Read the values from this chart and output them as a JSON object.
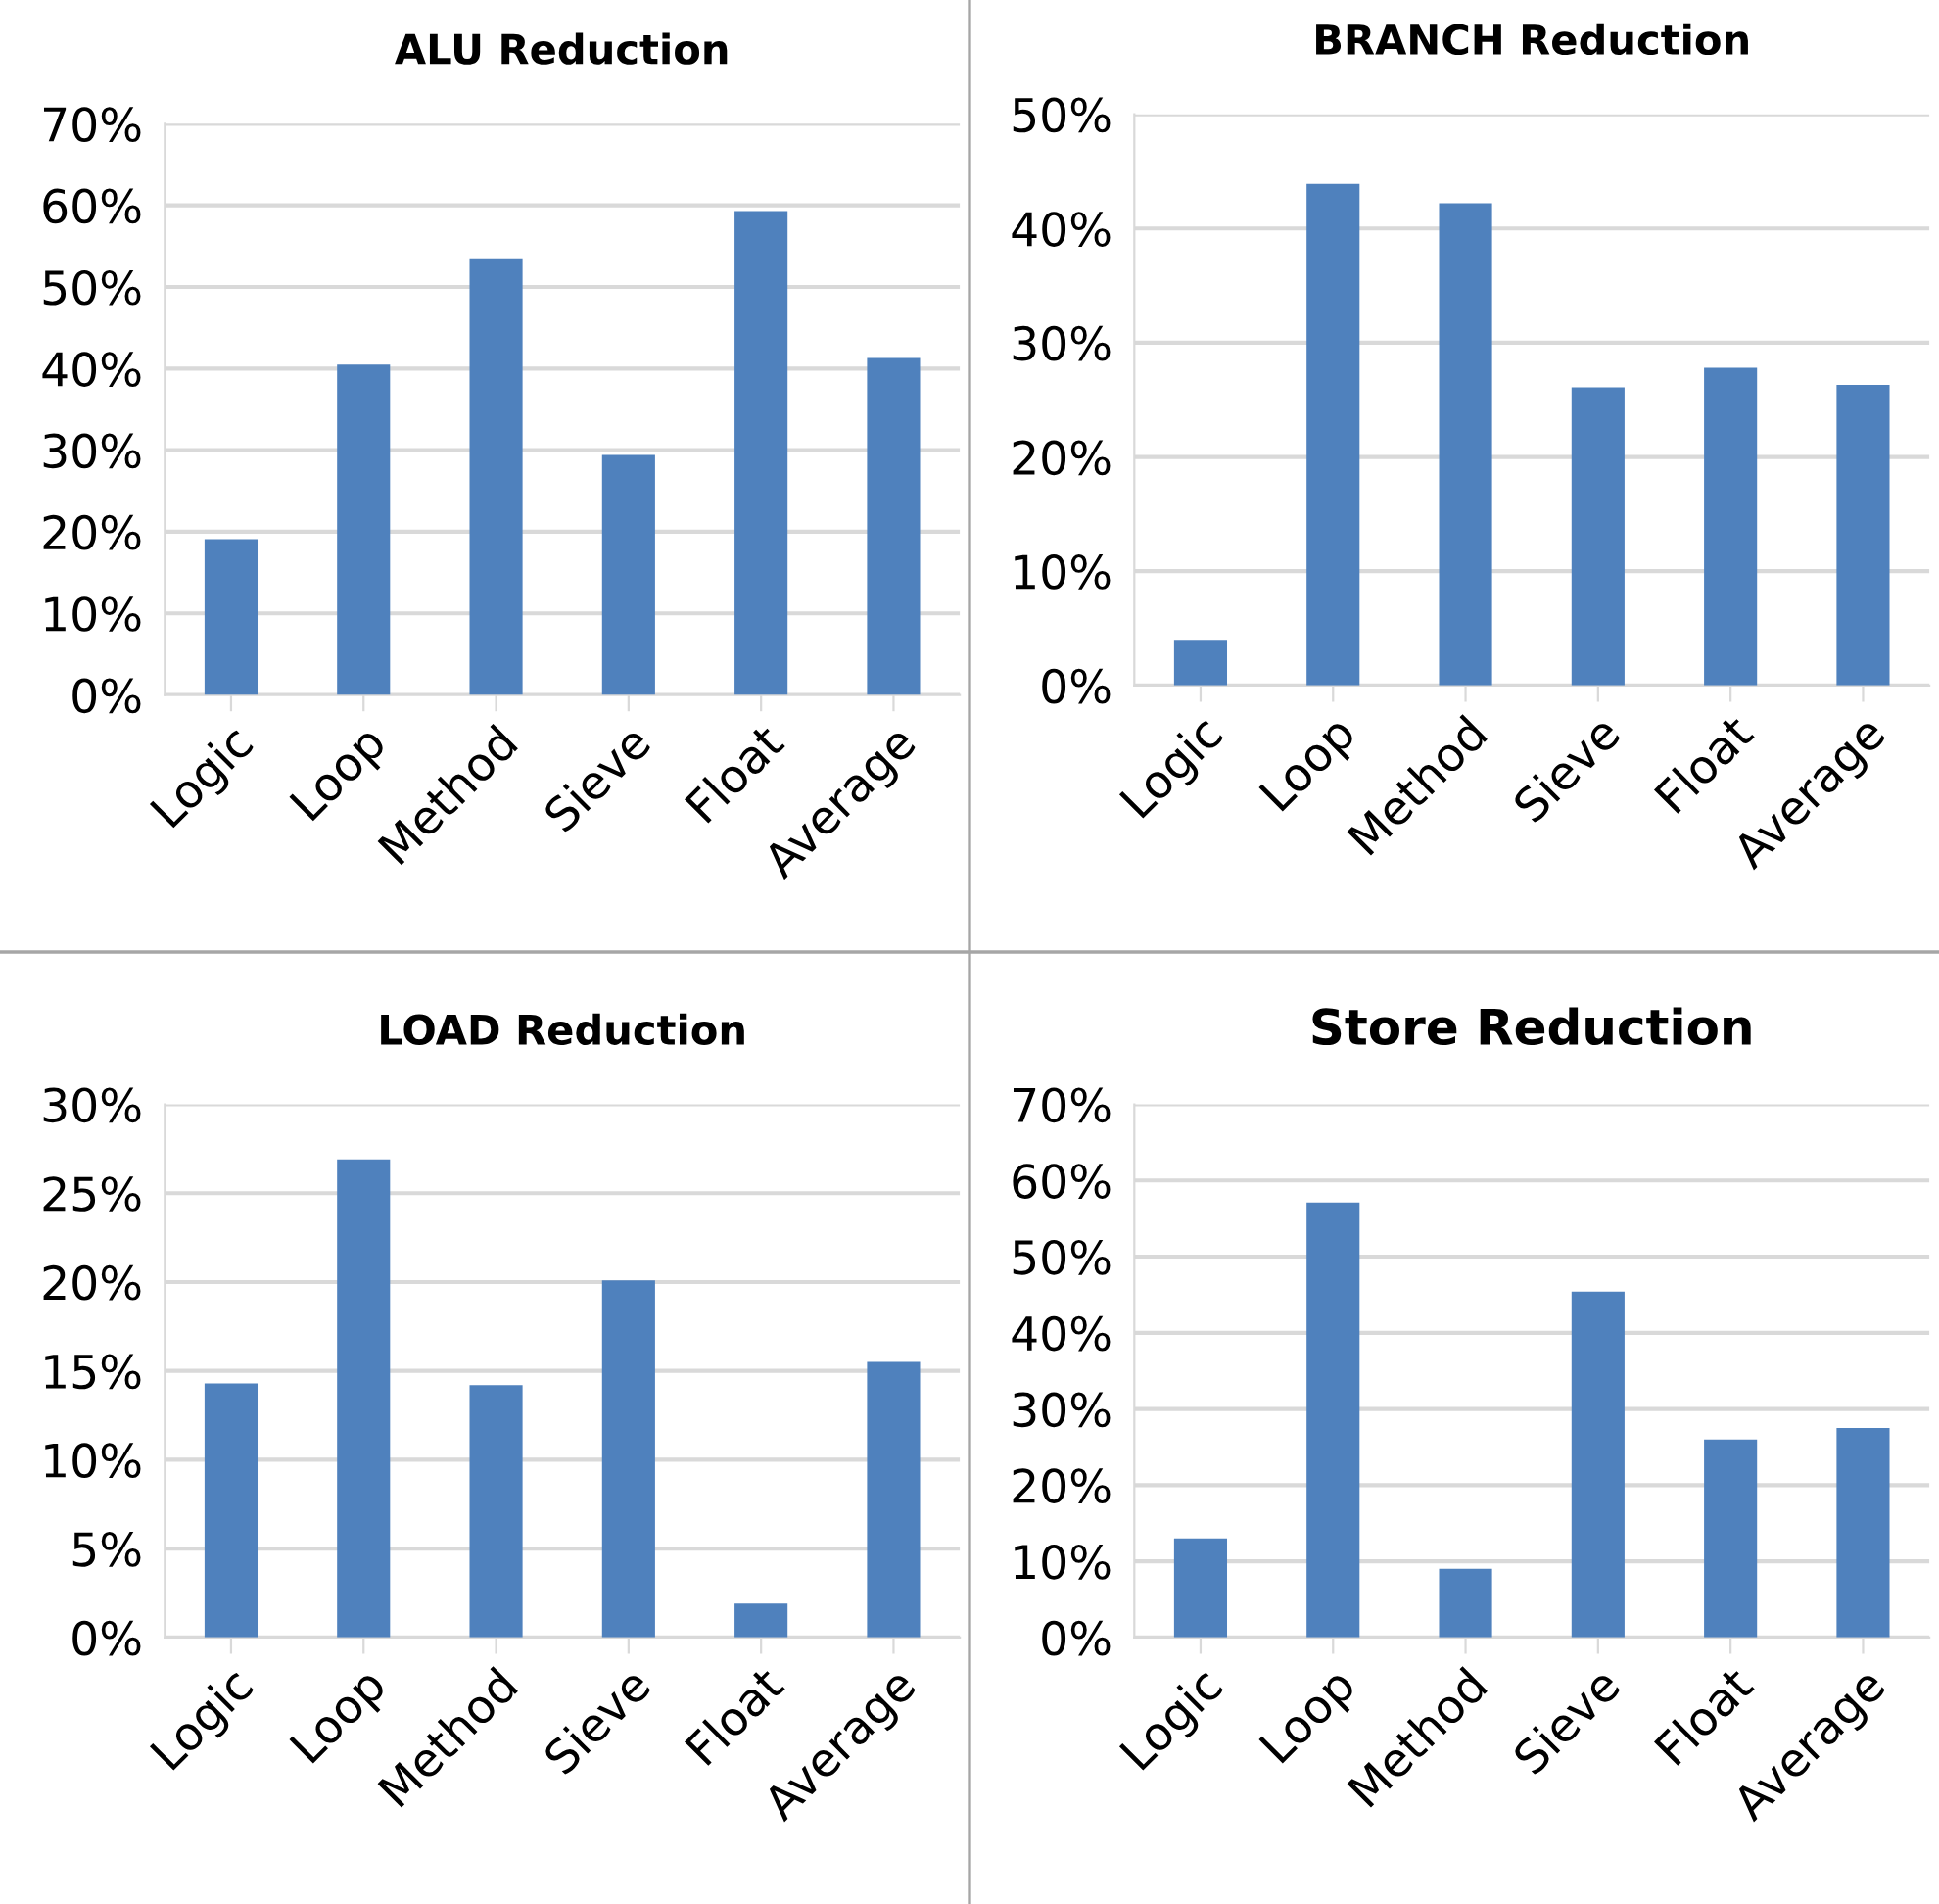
{
  "chart_data": [
    {
      "type": "bar",
      "title": "ALU Reduction",
      "categories": [
        "Logic",
        "Loop",
        "Method",
        "Sieve",
        "Float",
        "Average"
      ],
      "values": [
        19.1,
        40.5,
        53.5,
        29.4,
        59.3,
        41.3
      ],
      "color": "#4f81bd",
      "ylim": [
        0,
        70
      ],
      "yticks": [
        {
          "value": 0,
          "label": "0%"
        },
        {
          "value": 10,
          "label": "10%"
        },
        {
          "value": 20,
          "label": "20%"
        },
        {
          "value": 30,
          "label": "30%"
        },
        {
          "value": 40,
          "label": "40%"
        },
        {
          "value": 50,
          "label": "50%"
        },
        {
          "value": 60,
          "label": "60%"
        },
        {
          "value": 70,
          "label": "70%"
        }
      ],
      "grid": "y"
    },
    {
      "type": "bar",
      "title": "BRANCH Reduction",
      "categories": [
        "Logic",
        "Loop",
        "Method",
        "Sieve",
        "Float",
        "Average"
      ],
      "values": [
        4.0,
        43.9,
        42.2,
        26.1,
        27.8,
        26.3
      ],
      "color": "#4f81bd",
      "ylim": [
        0,
        50
      ],
      "yticks": [
        {
          "value": 0,
          "label": "0%"
        },
        {
          "value": 10,
          "label": "10%"
        },
        {
          "value": 20,
          "label": "20%"
        },
        {
          "value": 30,
          "label": "30%"
        },
        {
          "value": 40,
          "label": "40%"
        },
        {
          "value": 50,
          "label": "50%"
        }
      ],
      "grid": "y"
    },
    {
      "type": "bar",
      "title": "LOAD Reduction",
      "categories": [
        "Logic",
        "Loop",
        "Method",
        "Sieve",
        "Float",
        "Average"
      ],
      "values": [
        14.3,
        26.9,
        14.2,
        20.1,
        1.9,
        15.5
      ],
      "color": "#4f81bd",
      "ylim": [
        0,
        30
      ],
      "yticks": [
        {
          "value": 0,
          "label": "0%"
        },
        {
          "value": 5,
          "label": "5%"
        },
        {
          "value": 10,
          "label": "10%"
        },
        {
          "value": 15,
          "label": "15%"
        },
        {
          "value": 20,
          "label": "20%"
        },
        {
          "value": 25,
          "label": "25%"
        },
        {
          "value": 30,
          "label": "30%"
        }
      ],
      "grid": "y"
    },
    {
      "type": "bar",
      "title": "Store Reduction",
      "categories": [
        "Logic",
        "Loop",
        "Method",
        "Sieve",
        "Float",
        "Average"
      ],
      "values": [
        13.0,
        57.1,
        9.0,
        45.4,
        26.0,
        27.5
      ],
      "color": "#4f81bd",
      "ylim": [
        0,
        70
      ],
      "yticks": [
        {
          "value": 0,
          "label": "0%"
        },
        {
          "value": 10,
          "label": "10%"
        },
        {
          "value": 20,
          "label": "20%"
        },
        {
          "value": 30,
          "label": "30%"
        },
        {
          "value": 40,
          "label": "40%"
        },
        {
          "value": 50,
          "label": "50%"
        },
        {
          "value": 60,
          "label": "60%"
        },
        {
          "value": 70,
          "label": "70%"
        }
      ],
      "grid": "y"
    }
  ]
}
